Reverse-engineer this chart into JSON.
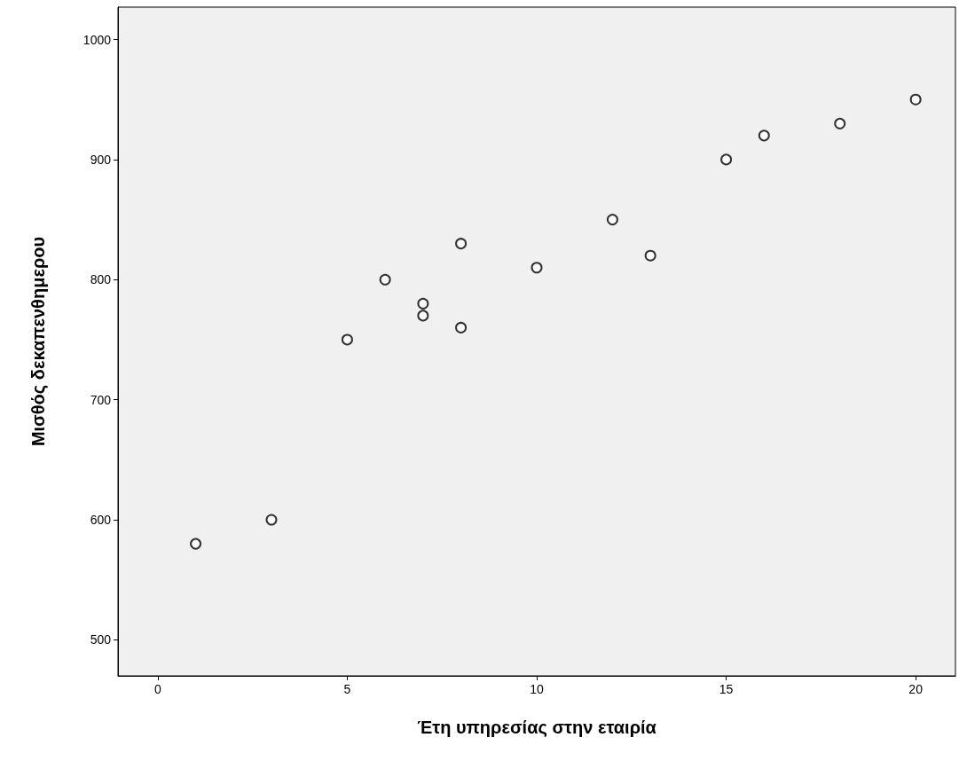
{
  "chart_data": {
    "type": "scatter",
    "xlabel": "Έτη υπηρεσίας στην εταιρία",
    "ylabel": "Μισθός δεκαπενθημερου",
    "x": [
      1,
      3,
      5,
      6,
      7,
      7,
      8,
      8,
      10,
      12,
      13,
      15,
      16,
      18,
      20
    ],
    "series": [
      {
        "color": "#000000",
        "values": [
          580,
          600,
          750,
          800,
          780,
          770,
          830,
          760,
          810,
          850,
          820,
          900,
          920,
          930,
          950
        ]
      }
    ],
    "xlim": [
      -1.05,
      21.05
    ],
    "xticks": [
      0,
      5,
      10,
      15,
      20
    ],
    "ylim": [
      470,
      1027
    ],
    "yticks": [
      500,
      600,
      700,
      800,
      900,
      1000
    ],
    "grid": false,
    "marker": "circle"
  }
}
